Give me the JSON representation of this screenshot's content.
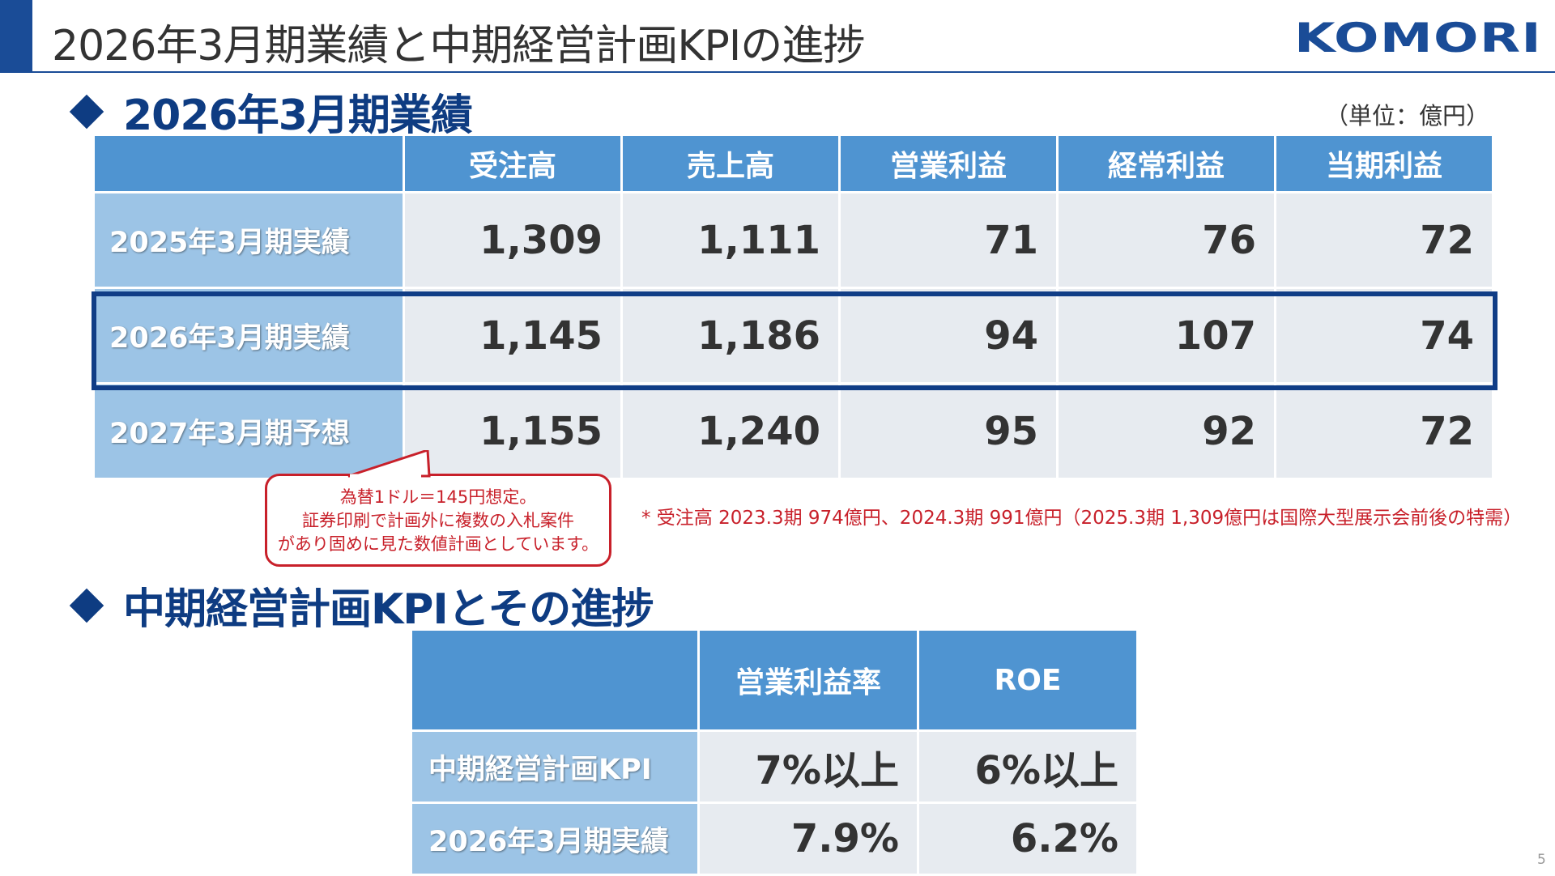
{
  "header": {
    "title": "2026年3月期業績と中期経営計画KPIの進捗",
    "logo_text": "KOMORI"
  },
  "section1": {
    "heading": "2026年3月期業績",
    "unit": "（単位：億円）",
    "columns": [
      "受注高",
      "売上高",
      "営業利益",
      "経常利益",
      "当期利益"
    ],
    "rows": [
      {
        "label": "2025年3月期実績",
        "values": [
          "1,309",
          "1,111",
          "71",
          "76",
          "72"
        ]
      },
      {
        "label": "2026年3月期実績",
        "values": [
          "1,145",
          "1,186",
          "94",
          "107",
          "74"
        ]
      },
      {
        "label": "2027年3月期予想",
        "values": [
          "1,155",
          "1,240",
          "95",
          "92",
          "72"
        ]
      }
    ],
    "callout_lines": [
      "為替1ドル＝145円想定。",
      "証券印刷で計画外に複数の入札案件",
      "があり固めに見た数値計画としています。"
    ],
    "note": "* 受注高 2023.3期 974億円、2024.3期 991億円（2025.3期 1,309億円は国際大型展示会前後の特需）"
  },
  "section2": {
    "heading": "中期経営計画KPIとその進捗",
    "columns": [
      "営業利益率",
      "ROE"
    ],
    "rows": [
      {
        "label": "中期経営計画KPI",
        "values": [
          "7%以上",
          "6%以上"
        ]
      },
      {
        "label": "2026年3月期実績",
        "values": [
          "7.9%",
          "6.2%"
        ]
      }
    ]
  },
  "page_number": "5",
  "colors": {
    "brand": "#1a4c97",
    "header_cell": "#4f94d1",
    "row_head": "#9cc4e6",
    "value_cell": "#e7ebf0",
    "note_red": "#c8202a"
  }
}
